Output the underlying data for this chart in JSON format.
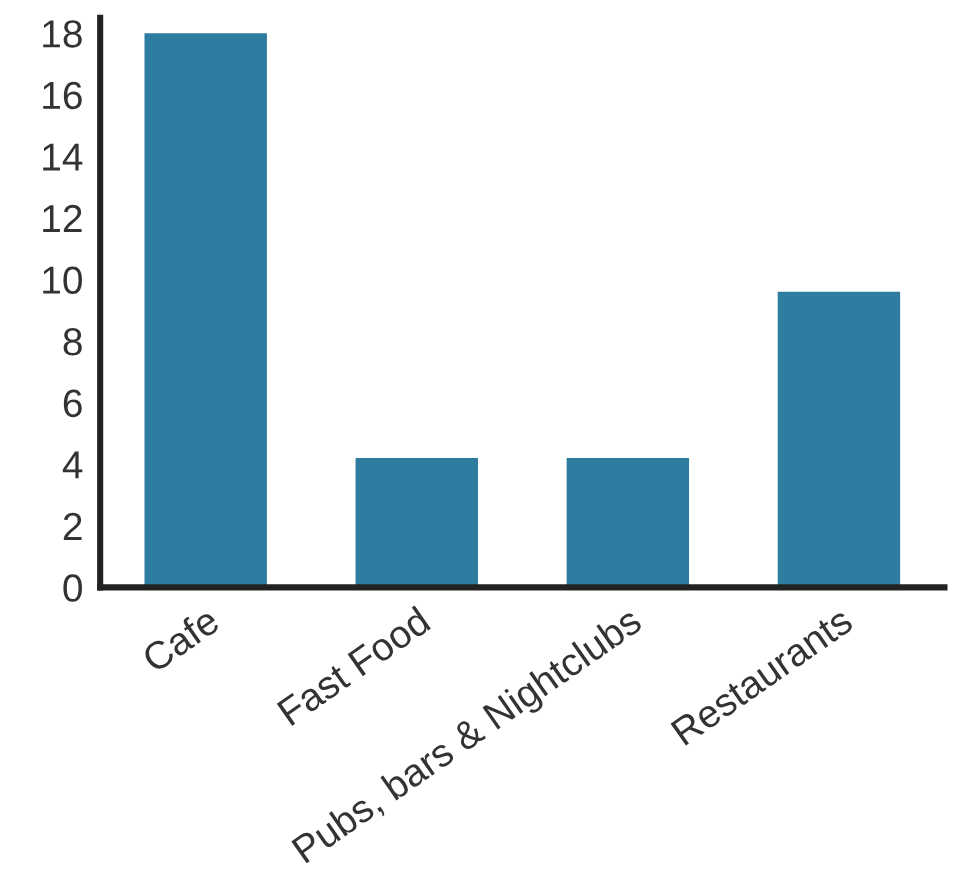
{
  "chart_data": {
    "type": "bar",
    "categories": [
      "Cafe",
      "Fast Food",
      "Pubs, bars & Nightclubs",
      "Restaurants"
    ],
    "values": [
      18,
      4.2,
      4.2,
      9.6
    ],
    "color": "#2e7ca0",
    "ylim": [
      0,
      18.5
    ],
    "yticks": [
      0,
      2,
      4,
      6,
      8,
      10,
      12,
      14,
      16,
      18
    ],
    "grid": false
  }
}
